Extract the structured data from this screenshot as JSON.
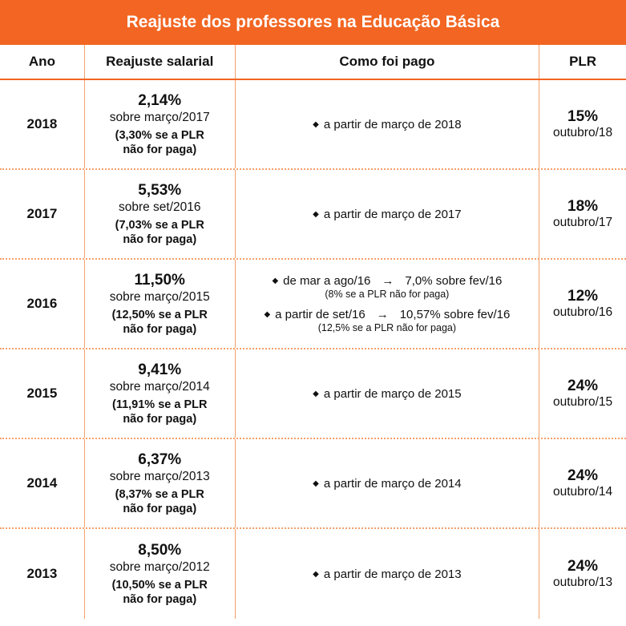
{
  "title": "Reajuste dos professores na Educação Básica",
  "columns": [
    "Ano",
    "Reajuste salarial",
    "Como foi pago",
    "PLR"
  ],
  "rows": [
    {
      "ano": "2018",
      "reajuste": "2,14%",
      "sobre": "sobre março/2017",
      "nota1": "(3,30% se a PLR",
      "nota2": "não for paga)",
      "pagamento": [
        {
          "text": "a partir de março de 2018"
        }
      ],
      "plr": "15%",
      "plr_data": "outubro/18"
    },
    {
      "ano": "2017",
      "reajuste": "5,53%",
      "sobre": "sobre set/2016",
      "nota1": "(7,03% se a PLR",
      "nota2": "não for paga)",
      "pagamento": [
        {
          "text": "a partir de março de 2017"
        }
      ],
      "plr": "18%",
      "plr_data": "outubro/17"
    },
    {
      "ano": "2016",
      "reajuste": "11,50%",
      "sobre": "sobre março/2015",
      "nota1": "(12,50% se a PLR",
      "nota2": "não for paga)",
      "pagamento": [
        {
          "text": "de mar a ago/16",
          "arrow": "→",
          "valor": "7,0% sobre fev/16",
          "sub": "(8% se a PLR não for paga)"
        },
        {
          "text": "a partir de set/16",
          "arrow": "→",
          "valor": "10,57% sobre fev/16",
          "sub": "(12,5% se a PLR não for paga)"
        }
      ],
      "plr": "12%",
      "plr_data": "outubro/16"
    },
    {
      "ano": "2015",
      "reajuste": "9,41%",
      "sobre": "sobre março/2014",
      "nota1": "(11,91% se a PLR",
      "nota2": "não for paga)",
      "pagamento": [
        {
          "text": "a partir de março de 2015"
        }
      ],
      "plr": "24%",
      "plr_data": "outubro/15"
    },
    {
      "ano": "2014",
      "reajuste": "6,37%",
      "sobre": "sobre março/2013",
      "nota1": "(8,37% se a PLR",
      "nota2": "não for paga)",
      "pagamento": [
        {
          "text": "a partir de março de 2014"
        }
      ],
      "plr": "24%",
      "plr_data": "outubro/14"
    },
    {
      "ano": "2013",
      "reajuste": "8,50%",
      "sobre": "sobre março/2012",
      "nota1": "(10,50% se a PLR",
      "nota2": "não for paga)",
      "pagamento": [
        {
          "text": "a partir de março de 2013"
        }
      ],
      "plr": "24%",
      "plr_data": "outubro/13"
    }
  ],
  "colors": {
    "accent": "#f26522",
    "divider": "#f5a06b"
  }
}
